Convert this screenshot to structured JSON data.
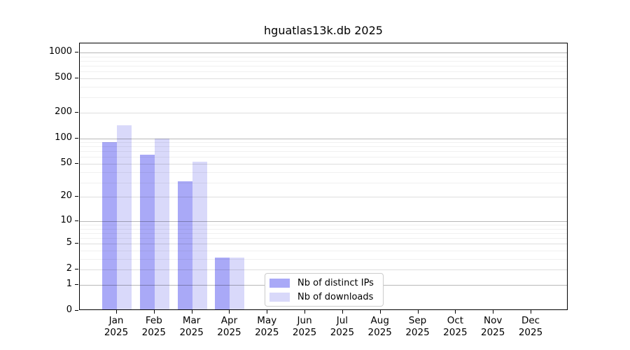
{
  "title": "hguatlas13k.db 2025",
  "chart_data": {
    "type": "bar",
    "title": "hguatlas13k.db 2025",
    "x_tick_months": [
      "Jan",
      "Feb",
      "Mar",
      "Apr",
      "May",
      "Jun",
      "Jul",
      "Aug",
      "Sep",
      "Oct",
      "Nov",
      "Dec"
    ],
    "x_tick_year": "2025",
    "series": [
      {
        "name": "Nb of distinct IPs",
        "color": "#a9a9f7",
        "values": [
          87,
          62,
          30,
          3,
          0,
          0,
          0,
          0,
          0,
          0,
          0,
          0
        ]
      },
      {
        "name": "Nb of downloads",
        "color": "#d9d9fa",
        "values": [
          136,
          95,
          51,
          3,
          0,
          0,
          0,
          0,
          0,
          0,
          0,
          0
        ]
      }
    ],
    "yscale": "log1p",
    "ylim": [
      0,
      1276
    ],
    "yticks": [
      0,
      1,
      2,
      5,
      10,
      20,
      50,
      100,
      200,
      500,
      1000
    ],
    "yticks_minor": [
      3,
      4,
      6,
      7,
      8,
      9,
      30,
      40,
      60,
      70,
      80,
      90,
      300,
      400,
      600,
      700,
      800,
      900
    ],
    "grid": true,
    "legend_position": "lower center"
  }
}
